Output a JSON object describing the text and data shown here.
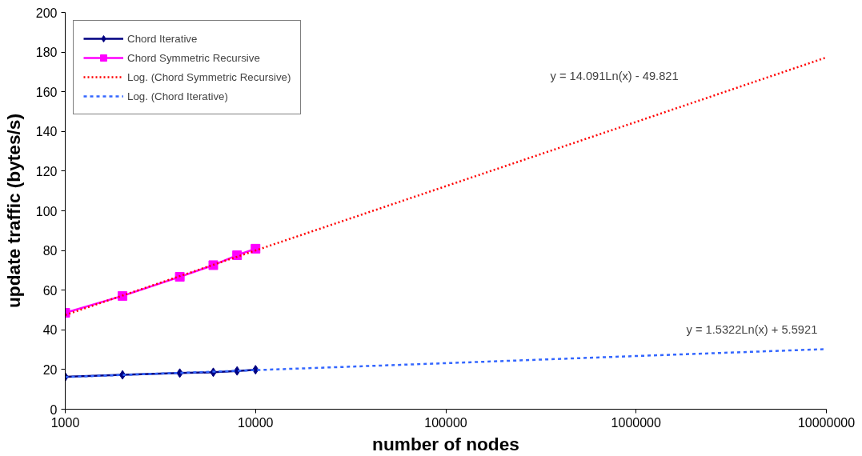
{
  "chart_data": {
    "type": "line",
    "xlabel": "number of nodes",
    "ylabel": "update traffic (bytes/s)",
    "log": "x",
    "xlim": [
      1000,
      10000000
    ],
    "xticks": [
      1000,
      10000,
      100000,
      1000000,
      10000000
    ],
    "ylim": [
      0,
      200
    ],
    "yticks": [
      0,
      20,
      40,
      60,
      80,
      100,
      120,
      140,
      160,
      180,
      200
    ],
    "grid": false,
    "legend": "top left",
    "series": [
      {
        "name": "Chord Iterative",
        "color": "#000080",
        "marker": "diamond",
        "line_style": "solid",
        "x": [
          1000,
          2000,
          4000,
          6000,
          8000,
          10000
        ],
        "values": [
          16.3,
          17.3,
          18.2,
          18.6,
          19.3,
          19.9
        ]
      },
      {
        "name": "Chord Symmetric Recursive",
        "color": "#ff00ff",
        "marker": "square",
        "line_style": "solid",
        "x": [
          1000,
          2000,
          4000,
          6000,
          8000,
          10000
        ],
        "values": [
          48.6,
          57.1,
          66.7,
          72.6,
          77.6,
          80.9
        ]
      },
      {
        "name": "Log. (Chord Symmetric Recursive)",
        "color": "#ff0000",
        "marker": "none",
        "line_style": "dotted",
        "x": [
          1000,
          10000,
          100000,
          1000000,
          10000000
        ],
        "values": [
          47.5,
          80.0,
          112.4,
          144.8,
          177.3
        ]
      },
      {
        "name": "Log. (Chord Iterative)",
        "color": "#3366ff",
        "marker": "none",
        "line_style": "dashed",
        "x": [
          1000,
          10000,
          100000,
          1000000,
          10000000
        ],
        "values": [
          16.2,
          19.7,
          23.2,
          26.8,
          30.3
        ]
      }
    ],
    "annotations": [
      "y = 14.091Ln(x) - 49.821",
      "y = 1.5322Ln(x) + 5.5921"
    ]
  }
}
